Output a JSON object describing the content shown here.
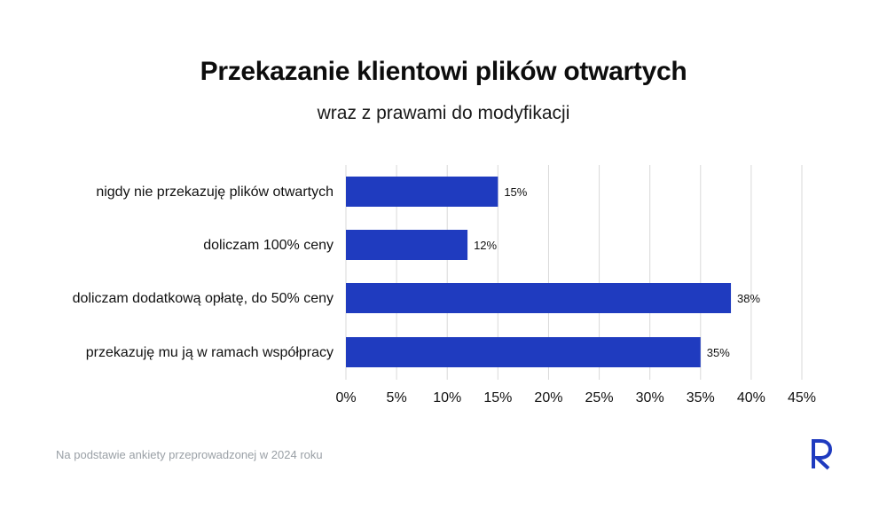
{
  "header": {
    "title": "Przekazanie klientowi plików otwartych",
    "subtitle": "wraz z prawami do modyfikacji"
  },
  "footer": {
    "note": "Na podstawie ankiety przeprowadzonej w 2024 roku",
    "logo_icon": "brand-r-logo-icon"
  },
  "colors": {
    "bar": "#1f3bbf",
    "grid": "#d9d9d9",
    "logo": "#1f3bbf"
  },
  "chart_data": {
    "type": "bar",
    "orientation": "horizontal",
    "title": "Przekazanie klientowi plików otwartych",
    "subtitle": "wraz z prawami do modyfikacji",
    "categories": [
      "nigdy nie przekazuję plików otwartych",
      "doliczam 100% ceny",
      "doliczam dodatkową opłatę, do 50% ceny",
      "przekazuję mu ją w ramach współpracy"
    ],
    "values": [
      15,
      12,
      38,
      35
    ],
    "value_labels": [
      "15%",
      "12%",
      "38%",
      "35%"
    ],
    "xlim": [
      0,
      45
    ],
    "x_ticks": [
      0,
      5,
      10,
      15,
      20,
      25,
      30,
      35,
      40,
      45
    ],
    "x_tick_labels": [
      "0%",
      "5%",
      "10%",
      "15%",
      "20%",
      "25%",
      "30%",
      "35%",
      "40%",
      "45%"
    ],
    "grid": true,
    "legend": "none"
  }
}
